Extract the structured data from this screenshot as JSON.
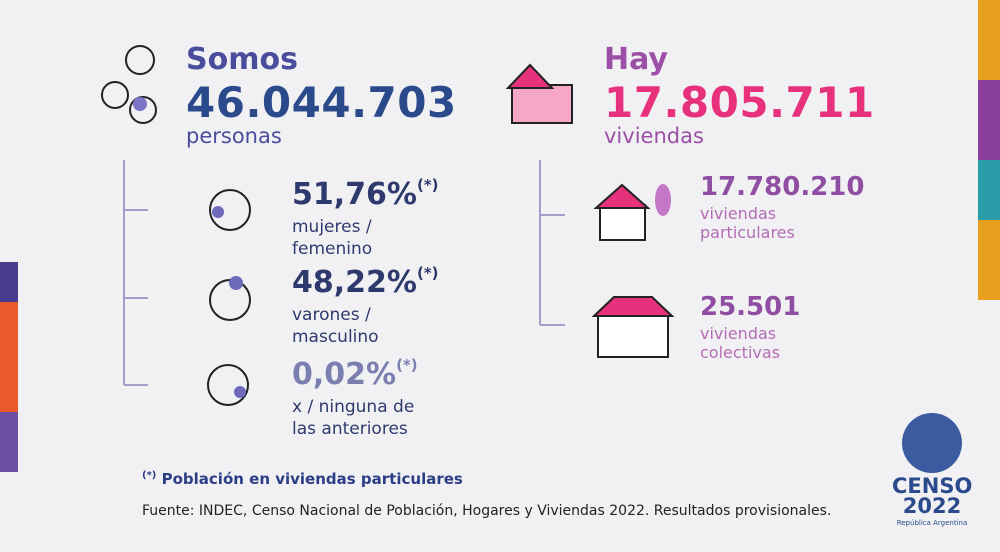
{
  "people": {
    "lead": "Somos",
    "total": "46.044.703",
    "unit": "personas",
    "groups": [
      {
        "value": "51,76%",
        "mark": "(*)",
        "label_lines": [
          "mujeres /",
          "femenino"
        ]
      },
      {
        "value": "48,22%",
        "mark": "(*)",
        "label_lines": [
          "varones /",
          "masculino"
        ]
      },
      {
        "value": "0,02%",
        "mark": "(*)",
        "label_lines": [
          "x / ninguna de",
          "las anteriores"
        ]
      }
    ]
  },
  "housing": {
    "lead": "Hay",
    "total": "17.805.711",
    "unit": "viviendas",
    "groups": [
      {
        "value": "17.780.210",
        "label_lines": [
          "viviendas",
          "particulares"
        ]
      },
      {
        "value": "25.501",
        "label_lines": [
          "viviendas",
          "colectivas"
        ]
      }
    ]
  },
  "footnote": {
    "mark": "(*)",
    "text": "Población en viviendas particulares"
  },
  "source": "Fuente: INDEC, Censo Nacional de Población, Hogares y Viviendas 2022. Resultados provisionales.",
  "logo": {
    "name": "CENSO",
    "year": "2022",
    "country": "República Argentina"
  }
}
